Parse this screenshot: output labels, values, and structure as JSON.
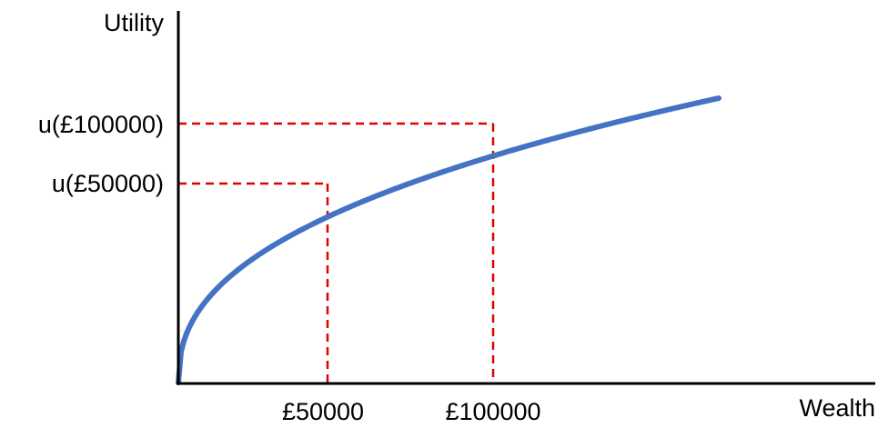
{
  "chart_data": {
    "type": "line",
    "ylabel": "Utility",
    "xlabel": "Wealth",
    "x_markers": [
      {
        "label": "£50000",
        "x": 50000
      },
      {
        "label": "£100000",
        "x": 100000
      }
    ],
    "y_markers": [
      {
        "label": "u(£50000)",
        "x": 50000
      },
      {
        "label": "u(£100000)",
        "x": 100000
      }
    ],
    "curve_shape": "concave",
    "grid": false,
    "colors": {
      "curve": "#4472c4",
      "guides": "#e00000",
      "axes": "#000000"
    }
  }
}
